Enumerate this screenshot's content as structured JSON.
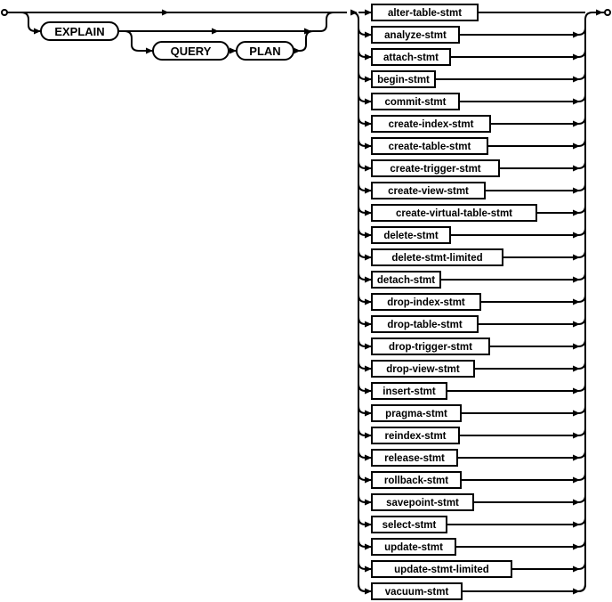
{
  "diagram": {
    "keywords": {
      "explain": "EXPLAIN",
      "query": "QUERY",
      "plan": "PLAN"
    },
    "statements": [
      "alter-table-stmt",
      "analyze-stmt",
      "attach-stmt",
      "begin-stmt",
      "commit-stmt",
      "create-index-stmt",
      "create-table-stmt",
      "create-trigger-stmt",
      "create-view-stmt",
      "create-virtual-table-stmt",
      "delete-stmt",
      "delete-stmt-limited",
      "detach-stmt",
      "drop-index-stmt",
      "drop-table-stmt",
      "drop-trigger-stmt",
      "drop-view-stmt",
      "insert-stmt",
      "pragma-stmt",
      "reindex-stmt",
      "release-stmt",
      "rollback-stmt",
      "savepoint-stmt",
      "select-stmt",
      "update-stmt",
      "update-stmt-limited",
      "vacuum-stmt"
    ]
  }
}
